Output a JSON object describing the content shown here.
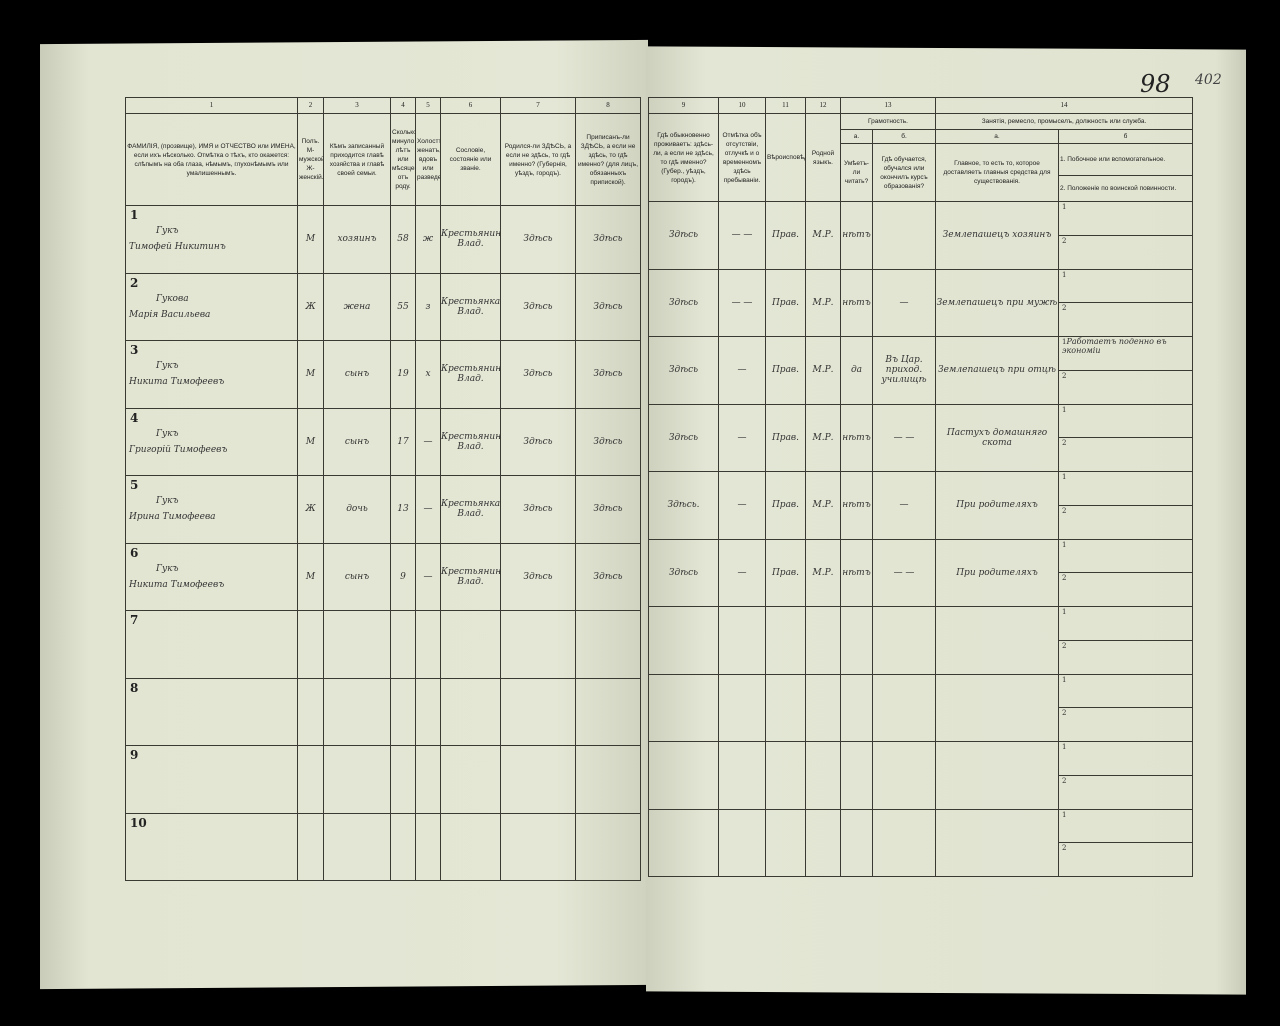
{
  "folio": {
    "page_number": "98",
    "extra": "402"
  },
  "left_headers": [
    {
      "num": "1",
      "text": "ФАМИЛІЯ, (прозвище), ИМЯ и ОТЧЕСТВО или ИМЕНА, если ихъ нѣсколько. Отмѣтка о тѣхъ, кто окажется: слѣпымъ на оба глаза, нѣмымъ, глухонѣмымъ или умалишеннымъ."
    },
    {
      "num": "2",
      "text": "Полъ. М-мужской. Ж-женскій."
    },
    {
      "num": "3",
      "text": "Кѣмъ записанный приходится главѣ хозяйства и главѣ своей семьи."
    },
    {
      "num": "4",
      "text": "Сколько минуло лѣтъ или мѣсяцевъ отъ роду."
    },
    {
      "num": "5",
      "text": "Холостъ, женатъ, вдовъ или разведенъ."
    },
    {
      "num": "6",
      "text": "Сословіе, состояніе или званіе."
    },
    {
      "num": "7",
      "text": "Родился-ли ЗДѢСЬ, а если не здѣсь, то гдѣ именно? (Губернія, уѣздъ, городъ)."
    },
    {
      "num": "8",
      "text": "Приписанъ-ли ЗДѢСЬ, а если не здѣсь, то гдѣ именно? (для лицъ, обязанныхъ припиской)."
    }
  ],
  "right_headers": {
    "c9": {
      "num": "9",
      "text": "Гдѣ обыкновенно проживаетъ: здѣсь-ли, а если не здѣсь, то гдѣ именно? (Губер., уѣздъ, городъ)."
    },
    "c10": {
      "num": "10",
      "text": "Отмѣтка объ отсутствіи, отлучкѣ и о временномъ здѣсь пребываніи."
    },
    "c11": {
      "num": "11",
      "text": "Вѣроисповѣданіе."
    },
    "c12": {
      "num": "12",
      "text": "Родной языкъ."
    },
    "c13": {
      "num": "13",
      "title": "Грамотность.",
      "a": "а.",
      "a_text": "Умѣетъ-ли читать?",
      "b": "б.",
      "b_text": "Гдѣ обучается, обучался или окончилъ курсъ образованія?"
    },
    "c14": {
      "num": "14",
      "title": "Занятія, ремесло, промыселъ, должность или служба.",
      "a": "а.",
      "a_text": "Главное, то есть то, которое доставляетъ главныя средства для существованія.",
      "b": "б",
      "b1": "1. Побочное или вспомогательное.",
      "b2": "2. Положеніе по воинской повинности."
    }
  },
  "rows": [
    {
      "n": "1",
      "surname": "Гукъ",
      "name": "Тимофей Никитинъ",
      "sex": "М",
      "rel": "хозяинъ",
      "age": "58",
      "mar": "ж",
      "estate": "Крестьянинъ Влад.",
      "born": "Здѣсь",
      "reg": "Здѣсь",
      "live": "Здѣсь",
      "absent": "— —",
      "relig": "Прав.",
      "lang": "М.Р.",
      "read": "нѣтъ",
      "edu": "",
      "occ": "Землепашецъ хозяинъ",
      "side": ""
    },
    {
      "n": "2",
      "surname": "Гукова",
      "name": "Марія Васильева",
      "sex": "Ж",
      "rel": "жена",
      "age": "55",
      "mar": "з",
      "estate": "Крестьянка Влад.",
      "born": "Здѣсь",
      "reg": "Здѣсь",
      "live": "Здѣсь",
      "absent": "— —",
      "relig": "Прав.",
      "lang": "М.Р.",
      "read": "нѣтъ",
      "edu": "—",
      "occ": "Землепашецъ при мужѣ",
      "side": ""
    },
    {
      "n": "3",
      "surname": "Гукъ",
      "name": "Никита Тимофеевъ",
      "sex": "М",
      "rel": "сынъ",
      "age": "19",
      "mar": "х",
      "estate": "Крестьянинъ Влад.",
      "born": "Здѣсь",
      "reg": "Здѣсь",
      "live": "Здѣсь",
      "absent": "—",
      "relig": "Прав.",
      "lang": "М.Р.",
      "read": "да",
      "edu": "Въ Цар. приход. училищѣ",
      "occ": "Землепашецъ при отцѣ",
      "side": "Работаетъ поденно въ экономіи"
    },
    {
      "n": "4",
      "surname": "Гукъ",
      "name": "Григорій Тимофеевъ",
      "sex": "М",
      "rel": "сынъ",
      "age": "17",
      "mar": "—",
      "estate": "Крестьянинъ Влад.",
      "born": "Здѣсь",
      "reg": "Здѣсь",
      "live": "Здѣсь",
      "absent": "—",
      "relig": "Прав.",
      "lang": "М.Р.",
      "read": "нѣтъ",
      "edu": "— —",
      "occ": "Пастухъ домашняго скота",
      "side": ""
    },
    {
      "n": "5",
      "surname": "Гукъ",
      "name": "Ирина Тимофеева",
      "sex": "Ж",
      "rel": "дочь",
      "age": "13",
      "mar": "—",
      "estate": "Крестьянка Влад.",
      "born": "Здѣсь",
      "reg": "Здѣсь",
      "live": "Здѣсь.",
      "absent": "—",
      "relig": "Прав.",
      "lang": "М.Р.",
      "read": "нѣтъ",
      "edu": "—",
      "occ": "При родителяхъ",
      "side": ""
    },
    {
      "n": "6",
      "surname": "Гукъ",
      "name": "Никита Тимофеевъ",
      "sex": "М",
      "rel": "сынъ",
      "age": "9",
      "mar": "—",
      "estate": "Крестьянинъ Влад.",
      "born": "Здѣсь",
      "reg": "Здѣсь",
      "live": "Здѣсь",
      "absent": "—",
      "relig": "Прав.",
      "lang": "М.Р.",
      "read": "нѣтъ",
      "edu": "— —",
      "occ": "При родителяхъ",
      "side": ""
    },
    {
      "n": "7"
    },
    {
      "n": "8"
    },
    {
      "n": "9"
    },
    {
      "n": "10"
    }
  ],
  "sub_labels": [
    "1",
    "2"
  ]
}
